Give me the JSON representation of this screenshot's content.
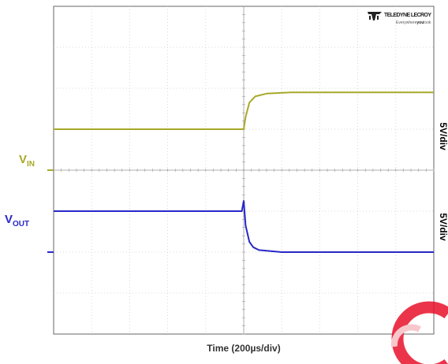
{
  "brand": {
    "name": "TELEDYNE LECROY",
    "tagline": "Everywhere",
    "tagline_bold": "you",
    "tagline_end": "look"
  },
  "chart_data": {
    "type": "line",
    "xlabel": "Time (200µs/div)",
    "x_divisions": 10,
    "y_divisions": 8,
    "x_units": "µs",
    "x_range": [
      0,
      2000
    ],
    "series": [
      {
        "name": "VIN",
        "name_main": "V",
        "name_sub": "IN",
        "color": "#a8a82a",
        "scale_label": "5V/div",
        "ground_div": 4.0,
        "points": [
          [
            0,
            1.0
          ],
          [
            1000,
            1.0
          ],
          [
            1010,
            1.3
          ],
          [
            1030,
            1.65
          ],
          [
            1060,
            1.8
          ],
          [
            1120,
            1.87
          ],
          [
            1250,
            1.9
          ],
          [
            2000,
            1.9
          ]
        ]
      },
      {
        "name": "VOUT",
        "name_main": "V",
        "name_sub": "OUT",
        "color": "#2828c8",
        "scale_label": "5V/div",
        "ground_div": 6.0,
        "points": [
          [
            0,
            1.0
          ],
          [
            990,
            1.0
          ],
          [
            1000,
            1.25
          ],
          [
            1010,
            0.65
          ],
          [
            1030,
            0.25
          ],
          [
            1050,
            0.12
          ],
          [
            1080,
            0.05
          ],
          [
            1200,
            0.0
          ],
          [
            2000,
            0.0
          ]
        ]
      }
    ]
  }
}
